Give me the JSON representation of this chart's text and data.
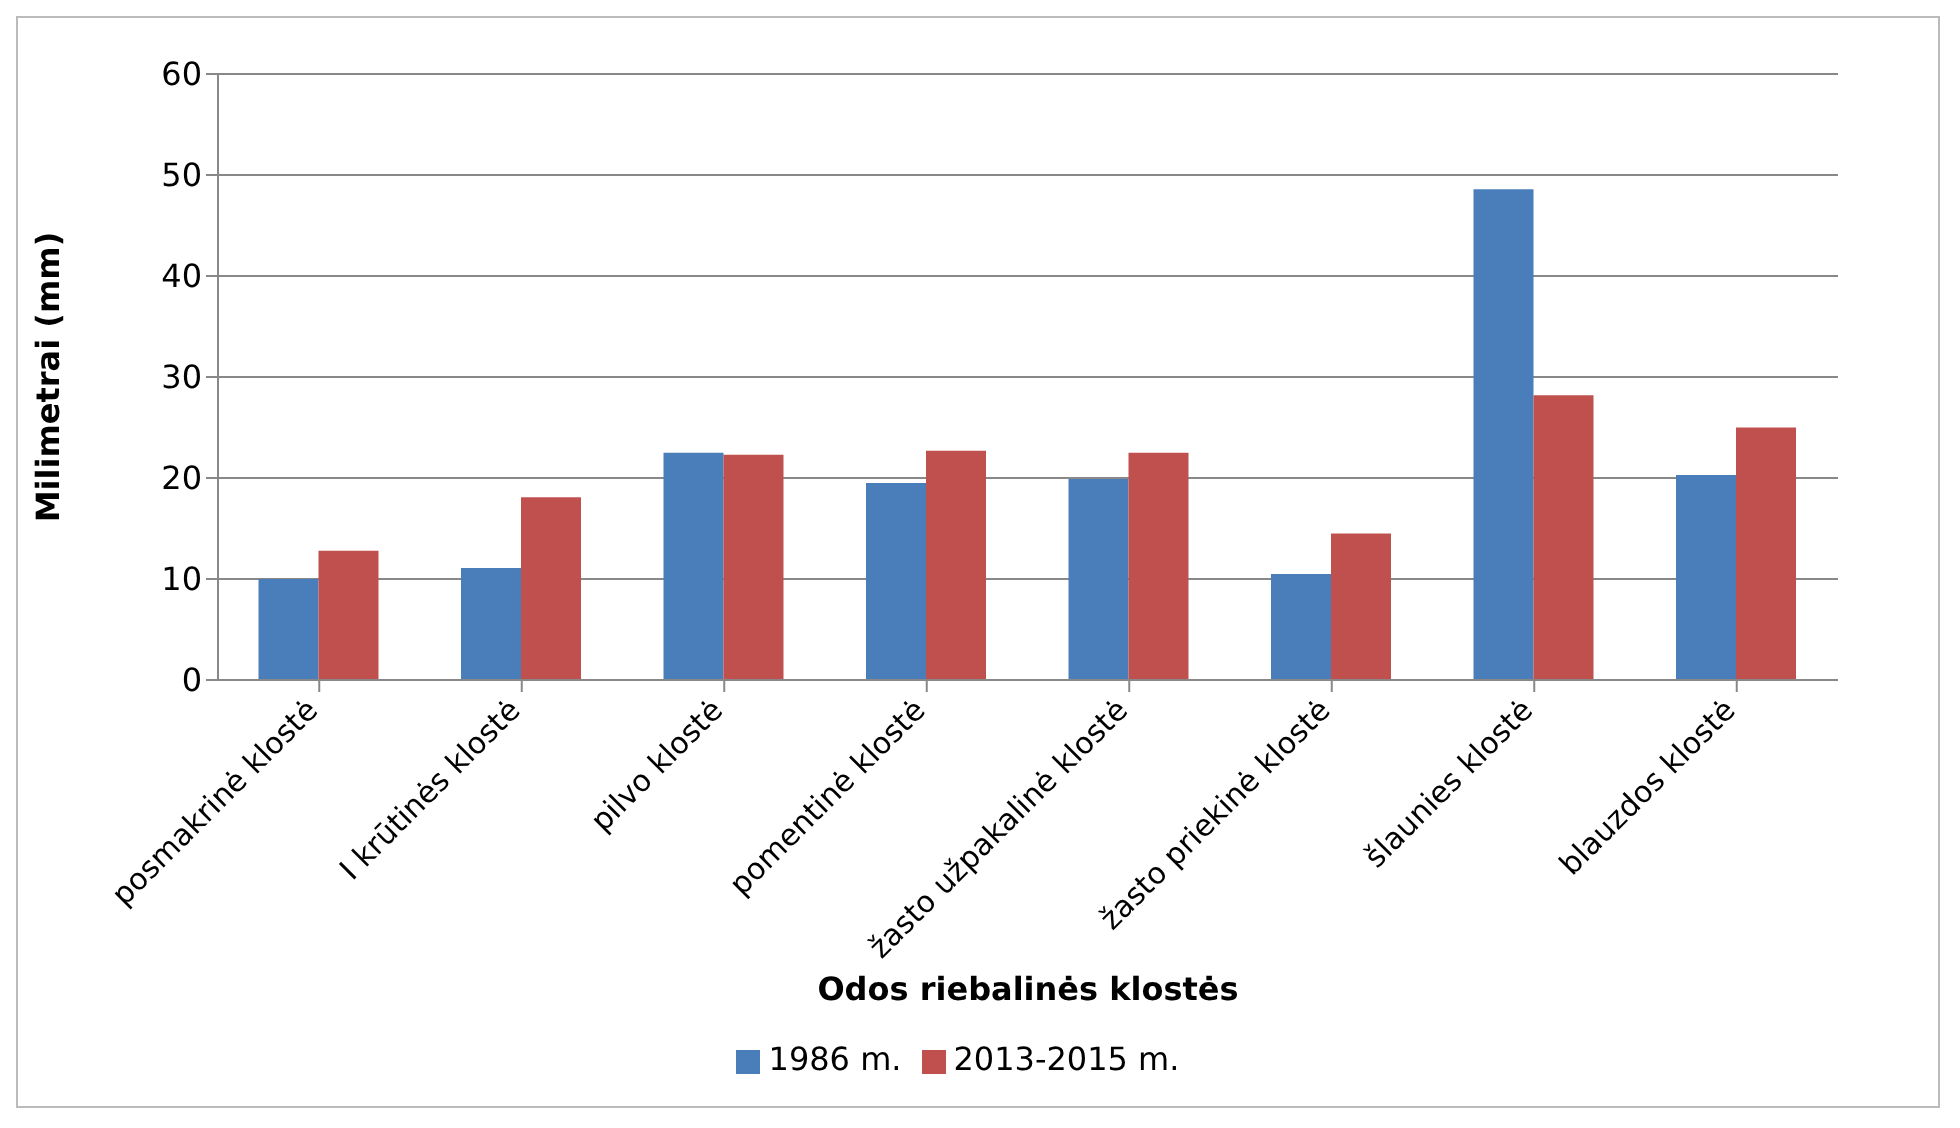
{
  "chart_data": {
    "type": "bar",
    "xlabel": "Odos riebalinės klostės",
    "ylabel": "Milimetrai (mm)",
    "categories": [
      "posmakrinė klostė",
      "I krūtinės klostė",
      "pilvo klostė",
      "pomentinė klostė",
      "žasto užpakalinė klostė",
      "žasto priekinė klostė",
      "šlaunies klostė",
      "blauzdos klostė"
    ],
    "series": [
      {
        "name": "1986 m.",
        "color": "#4a7ebb",
        "values": [
          10.0,
          11.1,
          22.5,
          19.5,
          19.9,
          10.5,
          48.6,
          20.3
        ]
      },
      {
        "name": "2013-2015 m.",
        "color": "#c0504d",
        "values": [
          12.8,
          18.1,
          22.3,
          22.7,
          22.5,
          14.5,
          28.2,
          25.0
        ]
      }
    ],
    "ylim": [
      0,
      60
    ],
    "yticks": [
      0,
      10,
      20,
      30,
      40,
      50,
      60
    ],
    "grid": "y",
    "legend": "bottom"
  }
}
